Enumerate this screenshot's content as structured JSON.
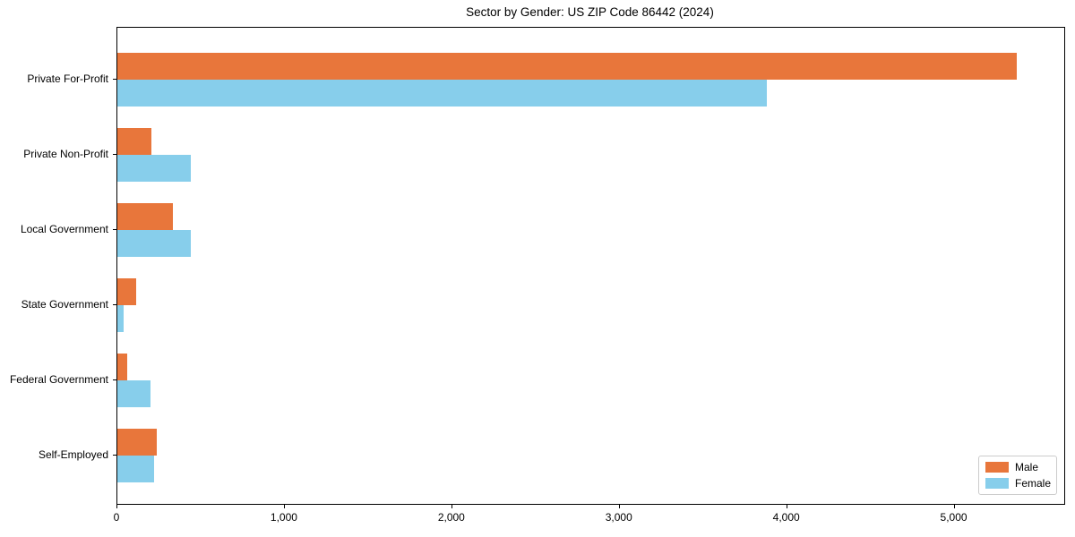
{
  "title": "Sector by Gender: US ZIP Code 86442 (2024)",
  "chart_data": {
    "type": "bar",
    "orientation": "horizontal",
    "title": "Sector by Gender: US ZIP Code 86442 (2024)",
    "categories": [
      "Private For-Profit",
      "Private Non-Profit",
      "Local Government",
      "State Government",
      "Federal Government",
      "Self-Employed"
    ],
    "series": [
      {
        "name": "Male",
        "color": "#e8763b",
        "values": [
          5370,
          205,
          330,
          110,
          60,
          235
        ]
      },
      {
        "name": "Female",
        "color": "#87ceeb",
        "values": [
          3880,
          440,
          440,
          40,
          200,
          220
        ]
      }
    ],
    "xlabel": "",
    "ylabel": "",
    "xlim": [
      0,
      5655
    ],
    "xticks": [
      0,
      1000,
      2000,
      3000,
      4000,
      5000
    ],
    "xtick_labels": [
      "0",
      "1,000",
      "2,000",
      "3,000",
      "4,000",
      "5,000"
    ],
    "grid": false,
    "legend_position": "lower right",
    "axis_color": "#000000",
    "background_color": "#ffffff"
  }
}
